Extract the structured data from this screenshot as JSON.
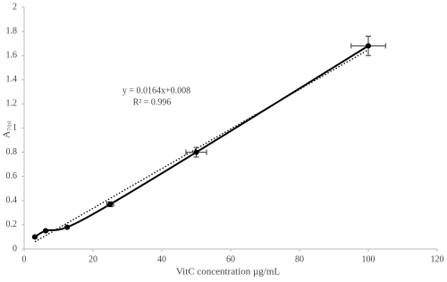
{
  "chart_data": {
    "type": "line",
    "x_label": "VitC concentration µg/mL",
    "y_label": "A₇₀₀",
    "annotations": [
      "y = 0.0164x+0.008",
      "R² = 0.996"
    ],
    "x": [
      3.125,
      6.25,
      12.5,
      25,
      50,
      100
    ],
    "series": [
      {
        "color": "#000000",
        "values": [
          0.1,
          0.15,
          0.18,
          0.37,
          0.8,
          1.68
        ],
        "y_errors": [
          0.01,
          0.01,
          0.01,
          0.02,
          0.04,
          0.08
        ],
        "x_errors": [
          0,
          0,
          0,
          1,
          3,
          5
        ]
      }
    ],
    "trendline": {
      "slope": 0.0164,
      "intercept": 0.008,
      "style": "dotted"
    },
    "xlim": [
      0,
      120
    ],
    "xticks": [
      0,
      20,
      40,
      60,
      80,
      100,
      120
    ],
    "ylim": [
      0,
      2
    ],
    "yticks": [
      0,
      0.2,
      0.4,
      0.6,
      0.8,
      1,
      1.2,
      1.4,
      1.6,
      1.8,
      2
    ],
    "grid": false
  }
}
